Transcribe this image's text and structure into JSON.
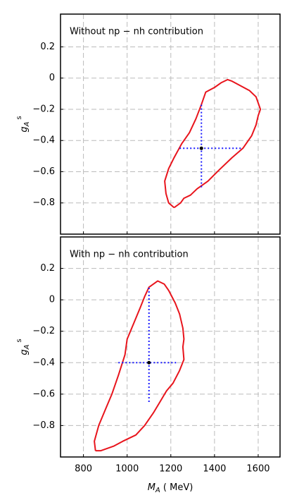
{
  "chart_data": [
    {
      "type": "contour",
      "title": "Without  np − nh contribution",
      "ylabel": {
        "base": "g",
        "sub": "A",
        "sup": "s"
      },
      "xlim": [
        695,
        1700
      ],
      "xticks": [
        800,
        1000,
        1200,
        1400,
        1600
      ],
      "show_xtick_labels": false,
      "ylim": [
        -1.0,
        0.41
      ],
      "yticks": [
        {
          "value": 0.2,
          "label": "0.2"
        },
        0,
        {
          "value": -0.2,
          "label": "−0.2"
        },
        {
          "value": -0.4,
          "label": "−0.4"
        },
        {
          "value": -0.6,
          "label": "−0.6"
        },
        {
          "value": -0.8,
          "label": "−0.8"
        }
      ],
      "grid": true,
      "contour": {
        "color": "#e8141c",
        "x": [
          1215,
          1190,
          1178,
          1172,
          1190,
          1215,
          1250,
          1285,
          1315,
          1340,
          1360,
          1400,
          1430,
          1460,
          1480,
          1520,
          1560,
          1590,
          1610,
          1600,
          1590,
          1570,
          1530,
          1480,
          1420,
          1370,
          1320,
          1290,
          1260,
          1245,
          1215
        ],
        "y": [
          -0.83,
          -0.8,
          -0.74,
          -0.66,
          -0.58,
          -0.51,
          -0.42,
          -0.35,
          -0.26,
          -0.17,
          -0.09,
          -0.06,
          -0.03,
          -0.01,
          -0.02,
          -0.05,
          -0.08,
          -0.12,
          -0.2,
          -0.24,
          -0.3,
          -0.37,
          -0.45,
          -0.51,
          -0.59,
          -0.66,
          -0.71,
          -0.75,
          -0.77,
          -0.8,
          -0.83
        ]
      },
      "cross": {
        "color": "#1a1aff",
        "center_x": 1340,
        "center_y": -0.45,
        "vertical": [
          -0.7,
          -0.17
        ],
        "horizontal": [
          1240,
          1530
        ]
      }
    },
    {
      "type": "contour",
      "title": "With  np − nh contribution",
      "ylabel": {
        "base": "g",
        "sub": "A",
        "sup": "s"
      },
      "xlabel": {
        "base": "M",
        "sub": "A",
        "rest": " ( MeV)"
      },
      "xlim": [
        695,
        1700
      ],
      "xticks": [
        800,
        1000,
        1200,
        1400,
        1600
      ],
      "show_xtick_labels": true,
      "ylim": [
        -1.0,
        0.4
      ],
      "yticks": [
        {
          "value": 0.2,
          "label": "0.2"
        },
        0,
        {
          "value": -0.2,
          "label": "−0.2"
        },
        {
          "value": -0.4,
          "label": "−0.4"
        },
        {
          "value": -0.6,
          "label": "−0.6"
        },
        {
          "value": -0.8,
          "label": "−0.8"
        }
      ],
      "grid": true,
      "contour": {
        "color": "#e8141c",
        "x": [
          855,
          850,
          870,
          900,
          930,
          960,
          990,
          1000,
          1030,
          1060,
          1080,
          1100,
          1140,
          1170,
          1190,
          1220,
          1240,
          1255,
          1260,
          1255,
          1260,
          1240,
          1210,
          1180,
          1150,
          1120,
          1080,
          1040,
          980,
          940,
          880,
          855
        ],
        "y": [
          -0.96,
          -0.9,
          -0.8,
          -0.7,
          -0.6,
          -0.48,
          -0.35,
          -0.25,
          -0.15,
          -0.05,
          0.02,
          0.08,
          0.12,
          0.1,
          0.06,
          -0.02,
          -0.09,
          -0.18,
          -0.25,
          -0.3,
          -0.38,
          -0.45,
          -0.53,
          -0.58,
          -0.65,
          -0.72,
          -0.8,
          -0.86,
          -0.9,
          -0.93,
          -0.96,
          -0.96
        ]
      },
      "cross": {
        "color": "#1a1aff",
        "center_x": 1100,
        "center_y": -0.4,
        "vertical": [
          -0.65,
          0.08
        ],
        "horizontal": [
          960,
          1225
        ]
      }
    }
  ]
}
